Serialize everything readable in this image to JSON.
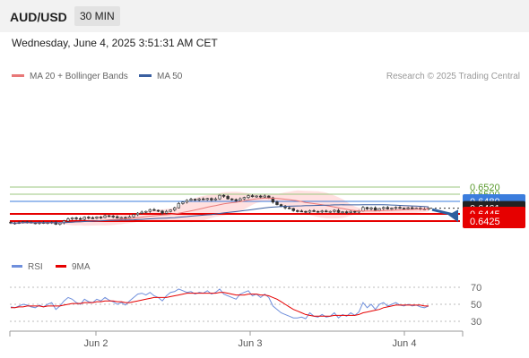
{
  "header": {
    "pair": "AUD/USD",
    "timeframe": "30 MIN"
  },
  "timestamp": "Wednesday, June 4, 2025 3:51:31 AM CET",
  "legend": {
    "ma20": "MA 20 + Bollinger Bands",
    "ma50": "MA 50",
    "credit": "Research © 2025 Trading Central",
    "rsi": "RSI",
    "rsi_ma": "9MA"
  },
  "colors": {
    "bull": "#e6e6e6",
    "bear": "#333333",
    "ma20": "#e87878",
    "ma50": "#3a5fa0",
    "band": "#ffd6d6",
    "resistance": "#9bc77f",
    "resistance_text": "#5a9a2e",
    "pivot": "#3b7ddd",
    "support": "#e60000",
    "rsi": "#6f8fdc",
    "rsi_ma": "#e60000"
  },
  "chart_data": [
    {
      "type": "candlestick",
      "x_ticks": [
        "Jun 2",
        "Jun 3",
        "Jun 4"
      ],
      "ylim": [
        0.641,
        0.653
      ],
      "levels": [
        {
          "value": 0.652,
          "label": "0.6520",
          "kind": "resistance"
        },
        {
          "value": 0.65,
          "label": "0.6500",
          "kind": "resistance"
        },
        {
          "value": 0.648,
          "label": "0.6480",
          "kind": "pivot"
        },
        {
          "value": 0.6461,
          "label": "0.6461",
          "kind": "last"
        },
        {
          "value": 0.6445,
          "label": "0.6445",
          "kind": "support"
        },
        {
          "value": 0.6425,
          "label": "0.6425",
          "kind": "support"
        }
      ],
      "close_approx": [
        0.642,
        0.6419,
        0.6421,
        0.6423,
        0.6422,
        0.642,
        0.6419,
        0.6421,
        0.6419,
        0.6421,
        0.6422,
        0.6416,
        0.642,
        0.6425,
        0.6431,
        0.6434,
        0.6432,
        0.643,
        0.6436,
        0.6434,
        0.6433,
        0.6436,
        0.6435,
        0.644,
        0.6439,
        0.6437,
        0.6434,
        0.6435,
        0.6433,
        0.6437,
        0.6443,
        0.6447,
        0.645,
        0.6452,
        0.6457,
        0.6455,
        0.6453,
        0.6447,
        0.6452,
        0.6456,
        0.6462,
        0.6474,
        0.6478,
        0.6483,
        0.6486,
        0.6484,
        0.6487,
        0.6485,
        0.6488,
        0.6484,
        0.6487,
        0.6497,
        0.6494,
        0.6487,
        0.6485,
        0.6482,
        0.6487,
        0.6491,
        0.6496,
        0.6493,
        0.6495,
        0.6492,
        0.6495,
        0.649,
        0.6478,
        0.6471,
        0.6467,
        0.6462,
        0.646,
        0.6454,
        0.6453,
        0.6452,
        0.645,
        0.6454,
        0.6452,
        0.6451,
        0.6453,
        0.6451,
        0.6452,
        0.6455,
        0.6449,
        0.6451,
        0.6449,
        0.6452,
        0.645,
        0.6453,
        0.6463,
        0.6459,
        0.6462,
        0.6455,
        0.646,
        0.6463,
        0.6459,
        0.6461,
        0.6463,
        0.6461,
        0.646,
        0.6462,
        0.646,
        0.6461,
        0.6459,
        0.6458,
        0.6461
      ],
      "forecast_arrow": {
        "from": 0.6457,
        "to": 0.6427
      }
    },
    {
      "type": "line",
      "title": "RSI",
      "series": [
        {
          "name": "RSI"
        },
        {
          "name": "9MA"
        }
      ],
      "y_ticks": [
        70,
        50,
        30
      ],
      "ylim": [
        20,
        80
      ],
      "rsi_approx": [
        47,
        46,
        48,
        50,
        49,
        47,
        46,
        49,
        47,
        50,
        52,
        44,
        48,
        54,
        58,
        56,
        52,
        50,
        56,
        53,
        52,
        56,
        54,
        58,
        55,
        53,
        50,
        52,
        49,
        54,
        58,
        62,
        63,
        61,
        64,
        60,
        58,
        54,
        60,
        64,
        65,
        68,
        66,
        64,
        65,
        62,
        64,
        63,
        66,
        62,
        64,
        68,
        62,
        60,
        58,
        56,
        62,
        64,
        66,
        60,
        62,
        58,
        62,
        58,
        48,
        44,
        40,
        38,
        36,
        34,
        34,
        35,
        33,
        40,
        36,
        35,
        38,
        35,
        36,
        40,
        34,
        38,
        36,
        40,
        37,
        41,
        52,
        46,
        50,
        44,
        50,
        52,
        48,
        50,
        52,
        49,
        48,
        50,
        48,
        49,
        47,
        46,
        48
      ],
      "ma_approx": [
        46,
        46,
        47,
        47,
        48,
        48,
        48,
        48,
        47,
        48,
        48,
        48,
        48,
        49,
        50,
        51,
        51,
        51,
        52,
        52,
        52,
        53,
        53,
        54,
        54,
        54,
        53,
        53,
        52,
        52,
        53,
        54,
        55,
        56,
        57,
        58,
        58,
        58,
        58,
        59,
        60,
        61,
        62,
        63,
        63,
        63,
        63,
        63,
        63,
        63,
        63,
        64,
        64,
        63,
        62,
        61,
        61,
        61,
        62,
        62,
        62,
        61,
        61,
        60,
        58,
        56,
        53,
        50,
        47,
        44,
        42,
        40,
        38,
        37,
        36,
        36,
        36,
        36,
        36,
        37,
        37,
        37,
        37,
        37,
        37,
        38,
        40,
        41,
        42,
        43,
        44,
        46,
        47,
        48,
        49,
        49,
        49,
        49,
        49,
        49,
        49,
        48,
        48
      ]
    }
  ]
}
